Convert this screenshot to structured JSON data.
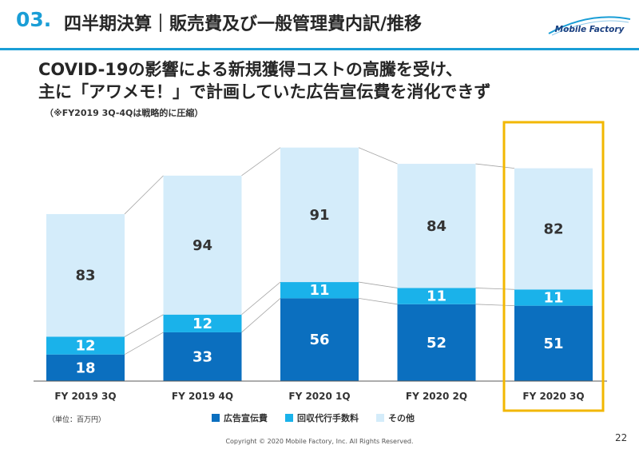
{
  "header": {
    "section_number": "03.",
    "section_title": "四半期決算｜販売費及び一般管理費内訳/推移",
    "logo_text": "Mobile Factory"
  },
  "headline": {
    "line1": "COVID-19の影響による新規獲得コストの高騰を受け、",
    "line2": "主に「アワメモ！」で計画していた広告宣伝費を消化できず",
    "note": "（※FY2019 3Q-4Qは戦略的に圧縮）"
  },
  "unit_note": "（単位：百万円）",
  "colors": {
    "advertising": "#0b6fbf",
    "collection_fee": "#1ab2ea",
    "other": "#d4ecfa",
    "highlight": "#f2b700",
    "accent": "#1a9ed6"
  },
  "chart_data": {
    "type": "bar",
    "stacked": true,
    "categories": [
      "FY 2019 3Q",
      "FY 2019 4Q",
      "FY 2020 1Q",
      "FY 2020 2Q",
      "FY 2020 3Q"
    ],
    "series": [
      {
        "name": "広告宣伝費",
        "values": [
          18,
          33,
          56,
          52,
          51
        ]
      },
      {
        "name": "回収代行手数料",
        "values": [
          12,
          12,
          11,
          11,
          11
        ]
      },
      {
        "name": "その他",
        "values": [
          83,
          94,
          91,
          84,
          82
        ]
      }
    ],
    "highlighted_category": "FY 2020 3Q",
    "legend_position": "bottom"
  },
  "footer": {
    "copyright": "Copyright © 2020 Mobile Factory, Inc. All Rights Reserved.",
    "page_number": "22"
  }
}
